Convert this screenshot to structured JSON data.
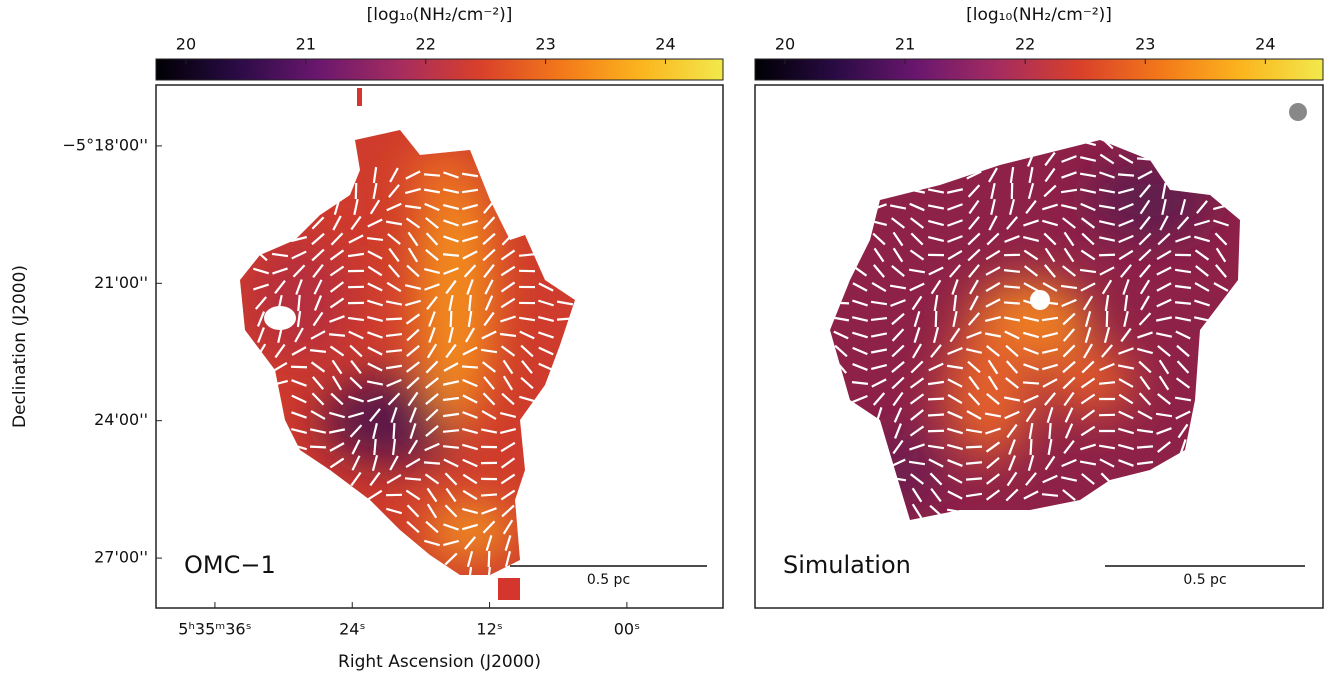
{
  "chart_data": [
    {
      "type": "map",
      "title": "OMC−1",
      "colorbar_label": "[log₁₀(NH₂/cm⁻²)]",
      "clim": [
        19.75,
        24.48
      ],
      "cticks": [
        20,
        21,
        22,
        23,
        24
      ],
      "colormap": [
        "#000004",
        "#2a0b45",
        "#6a176e",
        "#a52c60",
        "#d9402a",
        "#f3781a",
        "#fbb51e",
        "#f2e94c"
      ],
      "xlabel": "Right Ascension (J2000)",
      "ylabel": "Declination (J2000)",
      "xlim": [
        41.15,
        -8.4
      ],
      "xticks": [
        {
          "value": 36,
          "label": "5ʰ35ᵐ36ˢ"
        },
        {
          "value": 24,
          "label": "24ˢ"
        },
        {
          "value": 12,
          "label": "12ˢ"
        },
        {
          "value": 0,
          "label": "00ˢ"
        }
      ],
      "ylim": [
        16.67,
        28.09
      ],
      "yticks": [
        {
          "value": 18,
          "label": "−5°18'00''"
        },
        {
          "value": 21,
          "label": "21'00''"
        },
        {
          "value": 24,
          "label": "24'00''"
        },
        {
          "value": 27,
          "label": "27'00''"
        }
      ],
      "scale_bar_label": "0.5 pc"
    },
    {
      "type": "map",
      "title": "Simulation",
      "colorbar_label": "[log₁₀(NH₂/cm⁻²)]",
      "clim": [
        19.75,
        24.48
      ],
      "cticks": [
        20,
        21,
        22,
        23,
        24
      ],
      "colormap": [
        "#000004",
        "#2a0b45",
        "#6a176e",
        "#a52c60",
        "#d9402a",
        "#f3781a",
        "#fbb51e",
        "#f2e94c"
      ],
      "scale_bar_label": "0.5 pc"
    }
  ]
}
